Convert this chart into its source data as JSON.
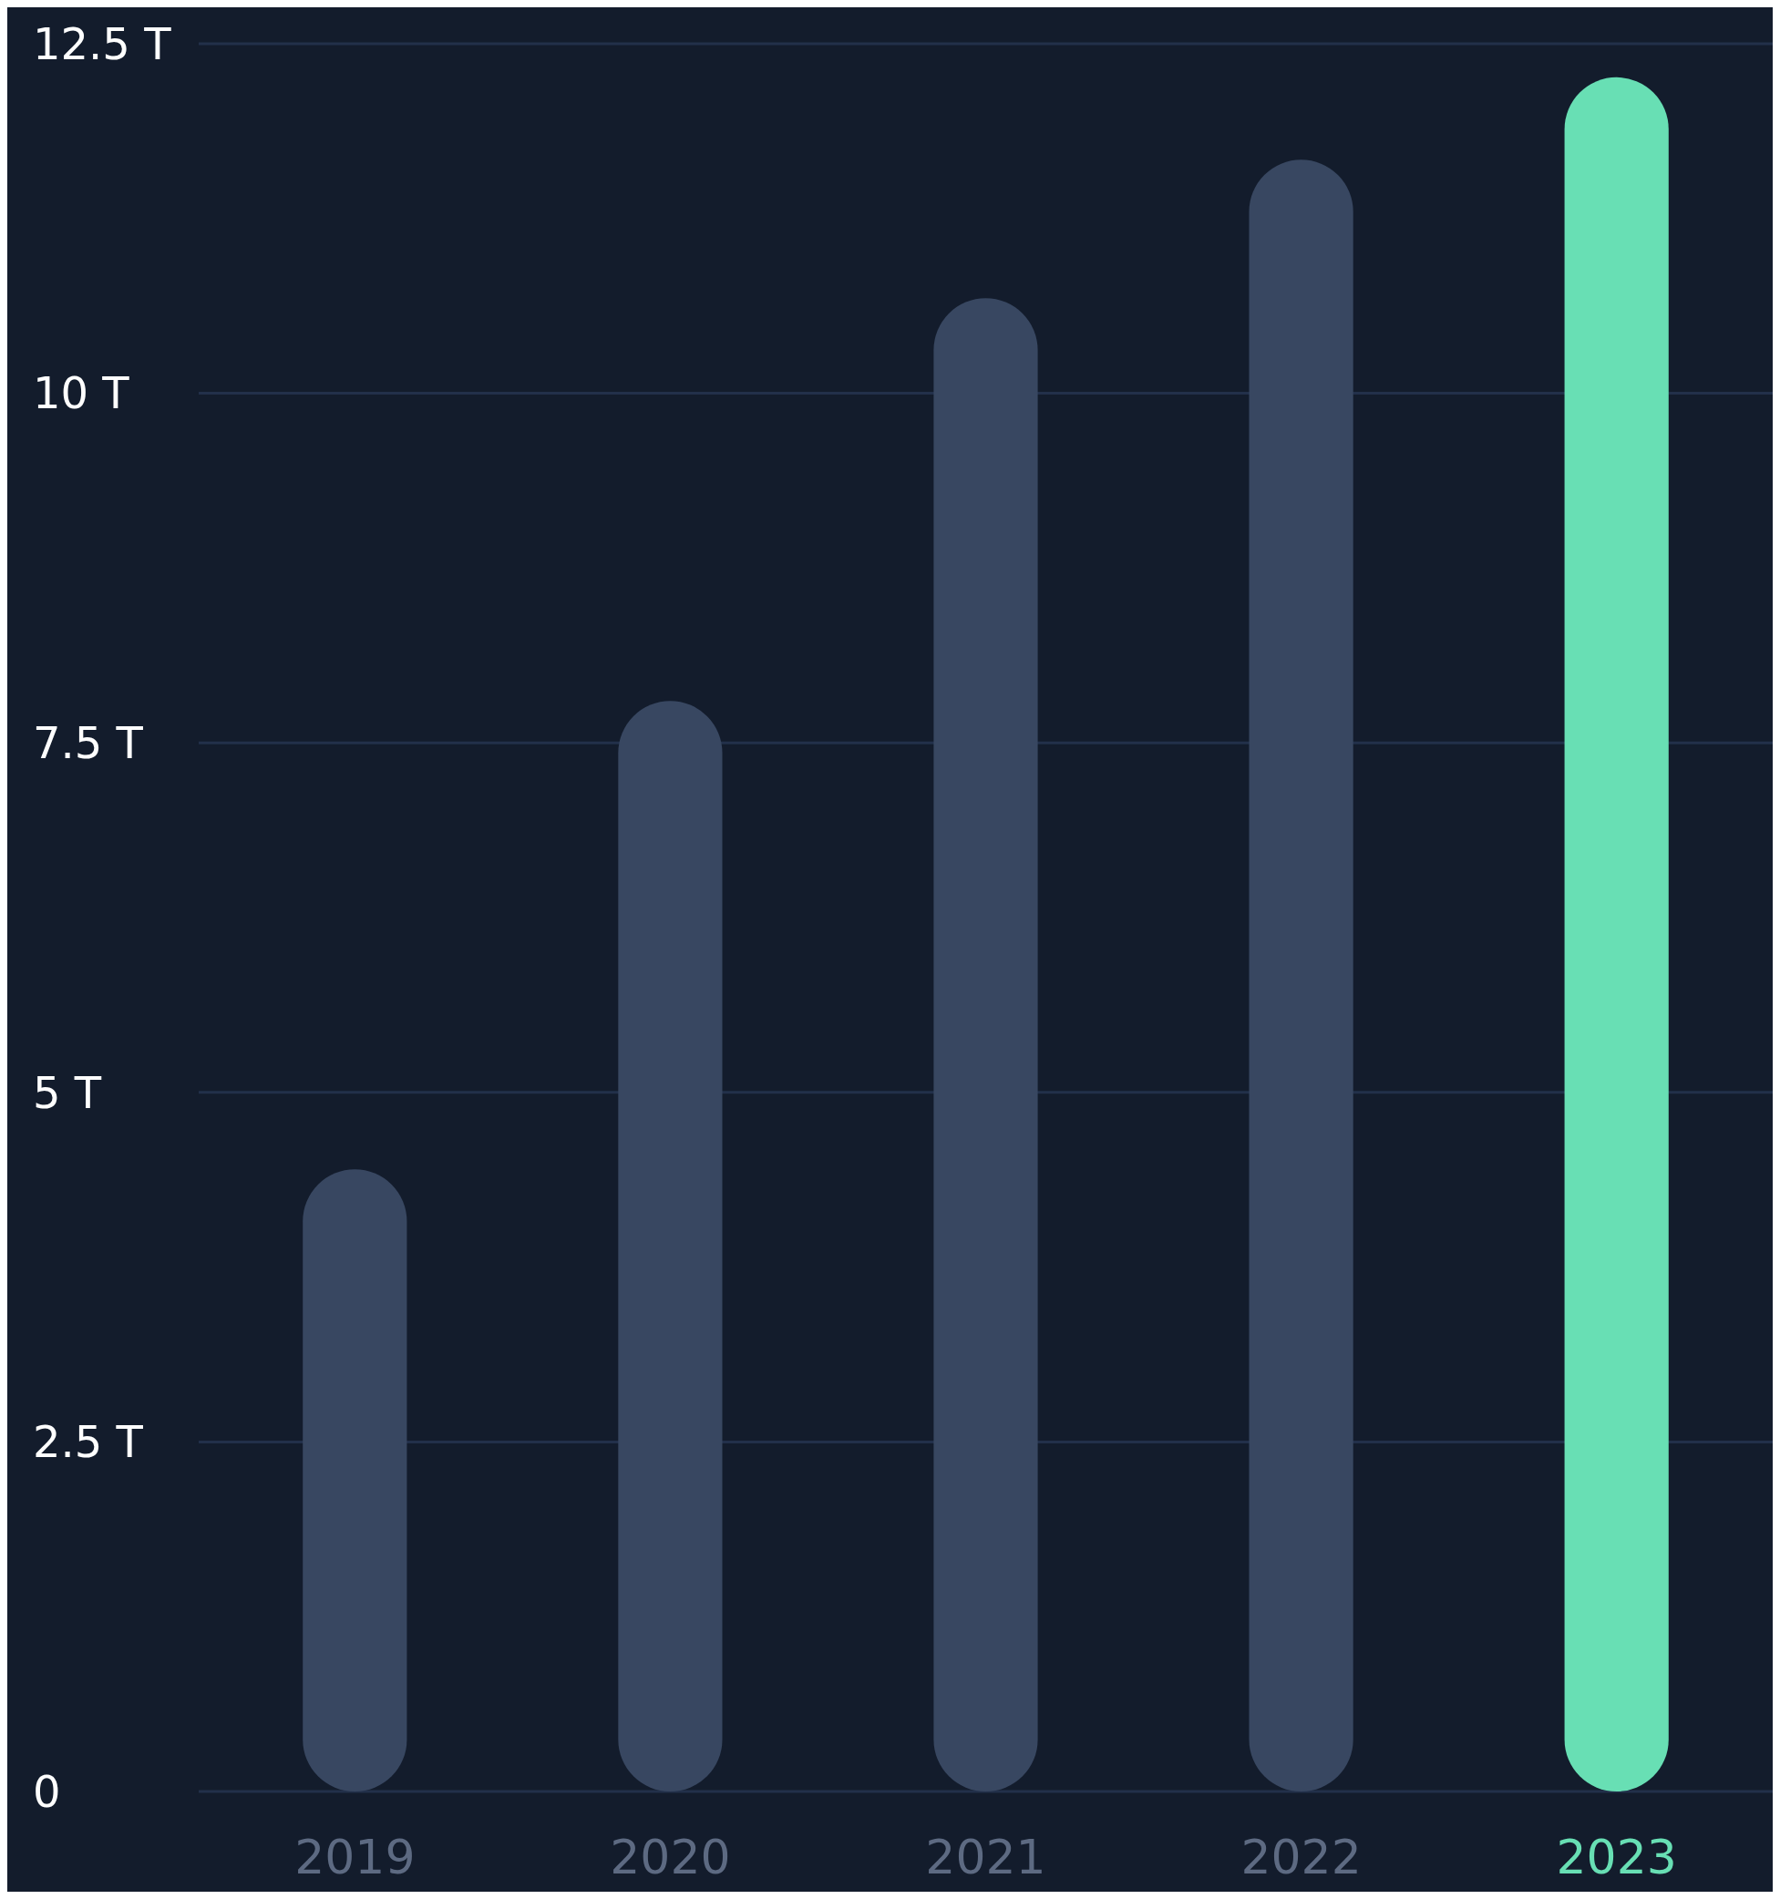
{
  "chart_data": {
    "type": "bar",
    "categories": [
      "2019",
      "2020",
      "2021",
      "2022",
      "2023"
    ],
    "values": [
      4.45,
      7.8,
      10.68,
      11.67,
      12.26
    ],
    "colors": [
      "#384761",
      "#384761",
      "#384761",
      "#384761",
      "#68dfb4"
    ],
    "ylim": [
      0,
      12.5
    ],
    "yticks": [
      {
        "value": 0,
        "label": "0"
      },
      {
        "value": 2.5,
        "label": "2.5 T"
      },
      {
        "value": 5,
        "label": "5 T"
      },
      {
        "value": 7.5,
        "label": "7.5 T"
      },
      {
        "value": 10,
        "label": "10 T"
      },
      {
        "value": 12.5,
        "label": "12.5 T"
      }
    ],
    "grid": "y"
  }
}
